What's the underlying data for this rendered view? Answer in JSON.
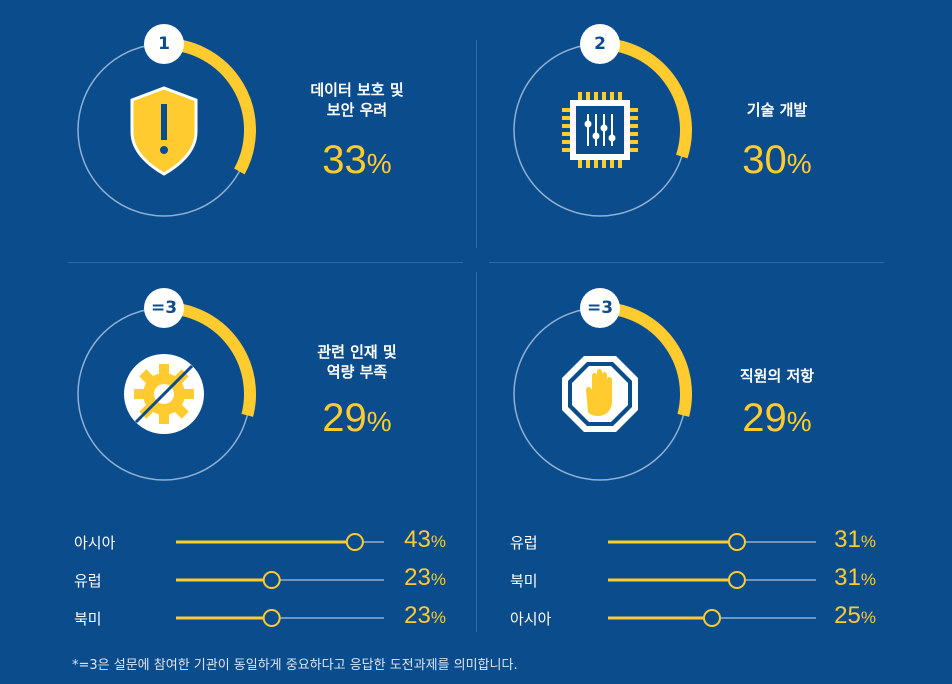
{
  "chart_data": {
    "type": "radial-progress",
    "items": [
      {
        "rank": "1",
        "label": "데이터 보호 및\n보안 우려",
        "value": 33,
        "unit": "%",
        "icon": "shield-exclamation-icon"
      },
      {
        "rank": "2",
        "label": "기술 개발",
        "value": 30,
        "unit": "%",
        "icon": "microchip-icon"
      },
      {
        "rank": "=3",
        "label": "관련 인재 및\n역량 부족",
        "value": 29,
        "unit": "%",
        "icon": "gear-slash-icon"
      },
      {
        "rank": "=3",
        "label": "직원의 저항",
        "value": 29,
        "unit": "%",
        "icon": "stop-hand-icon"
      }
    ],
    "regional_breakdowns": [
      {
        "for": "관련 인재 및 역량 부족",
        "type": "bar",
        "categories": [
          "아시아",
          "유럽",
          "북미"
        ],
        "values": [
          43,
          23,
          23
        ],
        "unit": "%"
      },
      {
        "for": "직원의 저항",
        "type": "bar",
        "categories": [
          "유럽",
          "북미",
          "아시아"
        ],
        "values": [
          31,
          31,
          25
        ],
        "unit": "%"
      }
    ]
  },
  "footnote": "*=3은 설문에 참여한 기관이 동일하게 중요하다고 응답한 도전과제를 의미합니다.",
  "colors": {
    "background": "#0b4c8c",
    "accent": "#ffcb2e",
    "ring": "#8fb0d2",
    "badge_text": "#0b4c8c"
  }
}
